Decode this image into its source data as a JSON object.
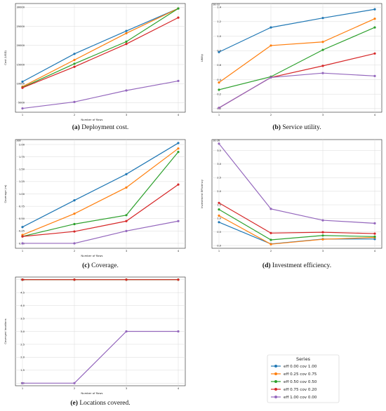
{
  "colors": [
    "#1f77b4",
    "#ff7f0e",
    "#2ca02c",
    "#d62728",
    "#9467bd"
  ],
  "legend": {
    "title": "Series",
    "entries": [
      "eff 0.00 cov 1.00",
      "eff 0.25 cov 0.75",
      "eff 0.50 cov 0.50",
      "eff 0.75 cov 0.20",
      "eff 1.00 cov 0.00"
    ]
  },
  "chart_data": [
    {
      "id": "a",
      "type": "line",
      "caption_letter": "(a)",
      "caption_text": " Deployment cost.",
      "xlabel": "Number of flows",
      "ylabel": "Cost (USD)",
      "multiplier": "",
      "x": [
        1,
        2,
        3,
        4
      ],
      "xticks": [
        "1",
        "2",
        "3",
        "4"
      ],
      "ylim": [
        2500,
        31000
      ],
      "yticks": [
        5000,
        10000,
        15000,
        20000,
        25000,
        30000
      ],
      "yticklabels": [
        "5000",
        "10000",
        "15000",
        "20000",
        "25000",
        "30000"
      ],
      "series": [
        {
          "values": [
            10500,
            17800,
            23800,
            29700
          ]
        },
        {
          "values": [
            9200,
            16200,
            23200,
            29700
          ]
        },
        {
          "values": [
            9000,
            15200,
            21000,
            29700
          ]
        },
        {
          "values": [
            8900,
            14400,
            20400,
            27300
          ]
        },
        {
          "values": [
            3500,
            5200,
            8200,
            10700
          ]
        }
      ]
    },
    {
      "id": "b",
      "type": "line",
      "caption_letter": "(b)",
      "caption_text": " Service utility.",
      "xlabel": "",
      "ylabel": "Utility",
      "multiplier": "1e-22",
      "x": [
        1,
        2,
        3,
        4
      ],
      "xticks": [
        "1",
        "2",
        "3",
        "4"
      ],
      "ylim": [
        -0.05,
        1.45
      ],
      "yticks": [
        0.0,
        0.2,
        0.4,
        0.6,
        0.8,
        1.0,
        1.2,
        1.4
      ],
      "yticklabels": [
        "0.0",
        "0.2",
        "0.4",
        "0.6",
        "0.8",
        "1.0",
        "1.2",
        "1.4"
      ],
      "series": [
        {
          "values": [
            0.78,
            1.12,
            1.25,
            1.37
          ]
        },
        {
          "values": [
            0.36,
            0.87,
            0.92,
            1.24
          ]
        },
        {
          "values": [
            0.26,
            0.44,
            0.81,
            1.12
          ]
        },
        {
          "values": [
            0.01,
            0.43,
            0.59,
            0.76
          ]
        },
        {
          "values": [
            0.01,
            0.43,
            0.49,
            0.45
          ]
        }
      ]
    },
    {
      "id": "c",
      "type": "line",
      "caption_letter": "(c)",
      "caption_text": " Coverage.",
      "xlabel": "Number of flows",
      "ylabel": "Coverage (m)",
      "multiplier": "1e8",
      "x": [
        1,
        2,
        3,
        4
      ],
      "xticks": [
        "1",
        "2",
        "3",
        "4"
      ],
      "ylim": [
        -0.1,
        2.1
      ],
      "yticks": [
        0.0,
        0.25,
        0.5,
        0.75,
        1.0,
        1.25,
        1.5,
        1.75,
        2.0
      ],
      "yticklabels": [
        "0.00",
        "0.25",
        "0.50",
        "0.75",
        "1.00",
        "1.25",
        "1.50",
        "1.75",
        "2.00"
      ],
      "series": [
        {
          "values": [
            0.33,
            0.87,
            1.4,
            2.03
          ]
        },
        {
          "values": [
            0.17,
            0.6,
            1.13,
            1.92
          ]
        },
        {
          "values": [
            0.14,
            0.39,
            0.57,
            1.85
          ]
        },
        {
          "values": [
            0.14,
            0.24,
            0.45,
            1.19
          ]
        },
        {
          "values": [
            0.0,
            0.0,
            0.25,
            0.45
          ]
        }
      ]
    },
    {
      "id": "d",
      "type": "line",
      "caption_letter": "(d)",
      "caption_text": " Investment efficiency.",
      "xlabel": "",
      "ylabel": "Investment Efficiency",
      "multiplier": "1e-26",
      "x": [
        1,
        2,
        3,
        4
      ],
      "xticks": [
        "1",
        "2",
        "3",
        "4"
      ],
      "ylim": [
        -0.1,
        3.9
      ],
      "yticks": [
        0.0,
        0.5,
        1.0,
        1.5,
        2.0,
        2.5,
        3.0,
        3.5
      ],
      "yticklabels": [
        "0.0",
        "0.5",
        "1.0",
        "1.5",
        "2.0",
        "2.5",
        "3.0",
        "3.5"
      ],
      "series": [
        {
          "values": [
            0.86,
            0.06,
            0.24,
            0.24
          ]
        },
        {
          "values": [
            1.1,
            0.05,
            0.23,
            0.3
          ]
        },
        {
          "values": [
            1.33,
            0.21,
            0.37,
            0.33
          ]
        },
        {
          "values": [
            1.57,
            0.46,
            0.49,
            0.44
          ]
        },
        {
          "values": [
            3.75,
            1.35,
            0.93,
            0.82
          ]
        }
      ]
    },
    {
      "id": "e",
      "type": "line",
      "caption_letter": "(e)",
      "caption_text": " Locations covered.",
      "xlabel": "Number of flows",
      "ylabel": "Coverged locations",
      "multiplier": "",
      "x": [
        1,
        2,
        3,
        4
      ],
      "xticks": [
        "1",
        "2",
        "3",
        "4"
      ],
      "ylim": [
        0.9,
        5.1
      ],
      "yticks": [
        1.0,
        1.5,
        2.0,
        2.5,
        3.0,
        3.5,
        4.0,
        4.5,
        5.0
      ],
      "yticklabels": [
        "1.0",
        "1.5",
        "2.0",
        "2.5",
        "3.0",
        "3.5",
        "4.0",
        "4.5",
        "5.0"
      ],
      "series": [
        {
          "values": [
            5.0,
            5.0,
            5.0,
            5.0
          ]
        },
        {
          "values": [
            5.0,
            5.0,
            5.0,
            5.0
          ]
        },
        {
          "values": [
            5.0,
            5.0,
            5.0,
            5.0
          ]
        },
        {
          "values": [
            5.0,
            5.0,
            5.0,
            5.0
          ]
        },
        {
          "values": [
            1.0,
            1.0,
            3.0,
            3.0
          ]
        }
      ]
    }
  ]
}
